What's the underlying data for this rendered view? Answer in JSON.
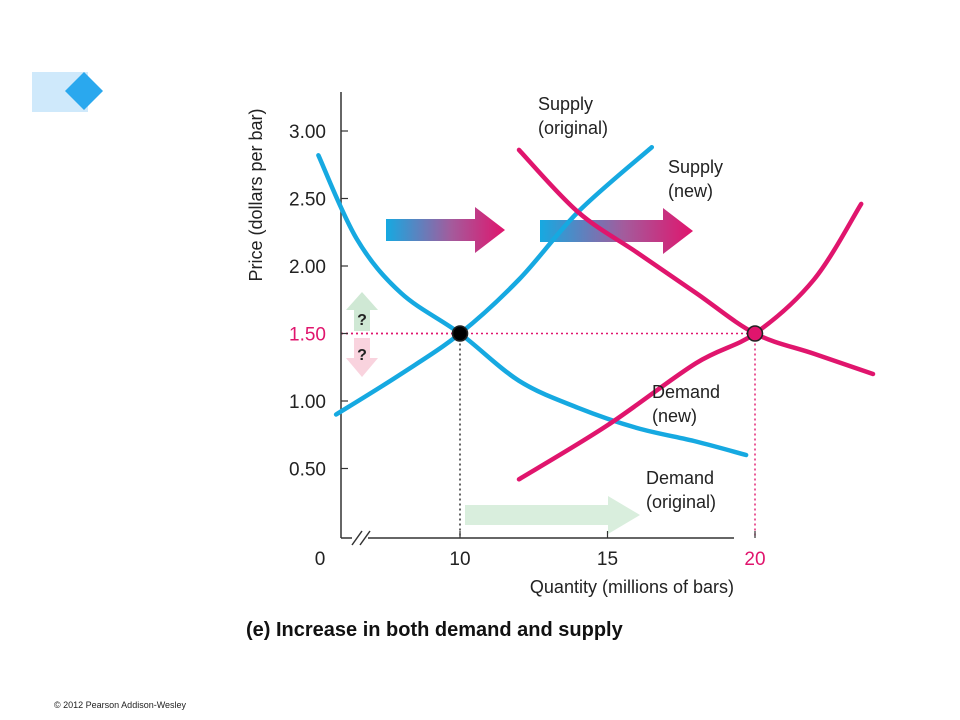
{
  "chart_data": {
    "type": "line",
    "caption": "(e) Increase in both demand and supply",
    "xlabel": "Quantity (millions of bars)",
    "ylabel": "Price (dollars per bar)",
    "x_origin_label": "0",
    "x_ticks": [
      {
        "value": 10,
        "label": "10",
        "highlight": false
      },
      {
        "value": 15,
        "label": "15",
        "highlight": false
      },
      {
        "value": 20,
        "label": "20",
        "highlight": true
      }
    ],
    "y_ticks": [
      {
        "value": 0.5,
        "label": "0.50",
        "highlight": false
      },
      {
        "value": 1.0,
        "label": "1.00",
        "highlight": false
      },
      {
        "value": 1.5,
        "label": "1.50",
        "highlight": true
      },
      {
        "value": 2.0,
        "label": "2.00",
        "highlight": false
      },
      {
        "value": 2.5,
        "label": "2.50",
        "highlight": false
      },
      {
        "value": 3.0,
        "label": "3.00",
        "highlight": false
      }
    ],
    "xlim": [
      0,
      25
    ],
    "ylim": [
      0,
      3.3
    ],
    "axis_break": true,
    "series": [
      {
        "label_lines": [
          "Supply",
          "(original)"
        ],
        "color": "#16a9e1",
        "points": [
          [
            5.8,
            0.9
          ],
          [
            8.0,
            1.2
          ],
          [
            10.0,
            1.5
          ],
          [
            12.0,
            1.9
          ],
          [
            14.0,
            2.4
          ],
          [
            16.5,
            2.88
          ]
        ]
      },
      {
        "label_lines": [
          "Demand",
          "(original)"
        ],
        "color": "#16a9e1",
        "points": [
          [
            5.2,
            2.82
          ],
          [
            6.5,
            2.2
          ],
          [
            8.0,
            1.8
          ],
          [
            10.0,
            1.5
          ],
          [
            12.0,
            1.15
          ],
          [
            14.0,
            0.95
          ],
          [
            16.0,
            0.8
          ],
          [
            18.0,
            0.7
          ],
          [
            19.7,
            0.6
          ]
        ]
      },
      {
        "label_lines": [
          "Supply",
          "(new)"
        ],
        "color": "#e0156d",
        "points": [
          [
            12.0,
            0.42
          ],
          [
            15.0,
            0.82
          ],
          [
            18.0,
            1.28
          ],
          [
            20.0,
            1.5
          ],
          [
            22.0,
            1.9
          ],
          [
            23.6,
            2.46
          ]
        ]
      },
      {
        "label_lines": [
          "Demand",
          "(new)"
        ],
        "color": "#e0156d",
        "points": [
          [
            12.0,
            2.86
          ],
          [
            14.0,
            2.4
          ],
          [
            16.0,
            2.1
          ],
          [
            18.0,
            1.8
          ],
          [
            20.0,
            1.5
          ],
          [
            22.0,
            1.35
          ],
          [
            24.0,
            1.2
          ]
        ]
      }
    ],
    "equilibria": [
      {
        "x": 10,
        "y": 1.5,
        "fill": "#000000"
      },
      {
        "x": 20,
        "y": 1.5,
        "fill": "#e0156d"
      }
    ],
    "guides": [
      {
        "x": 10,
        "y": 1.5,
        "color": "#222222"
      },
      {
        "x": 20,
        "y": 1.5,
        "color": "#e0156d"
      }
    ],
    "annotations": {
      "price_question_up": "?",
      "price_question_down": "?"
    },
    "colors": {
      "original": "#16a9e1",
      "new": "#e0156d",
      "quantity_arrow": "#d9eedd",
      "price_up": "#cfe8d4",
      "price_down": "#f9d3de"
    }
  },
  "footer": {
    "copyright": "© 2012 Pearson Addison-Wesley"
  }
}
